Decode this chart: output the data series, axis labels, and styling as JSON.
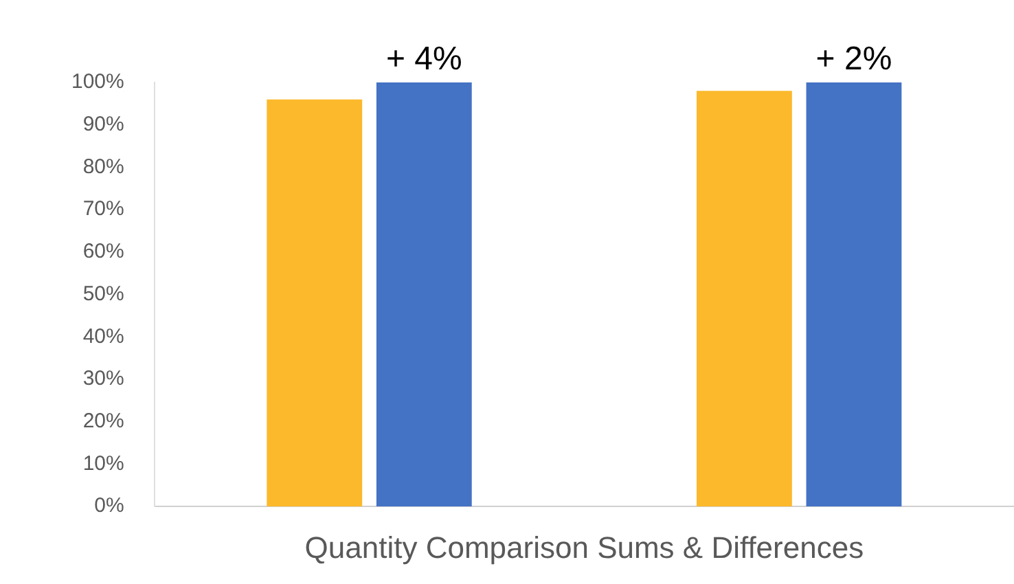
{
  "chart_data": {
    "type": "bar",
    "xlabel": "Quantity Comparison Sums & Differences",
    "categories": [
      null,
      null
    ],
    "series": [
      {
        "color": "#fbb92b",
        "values": [
          96,
          98
        ]
      },
      {
        "color": "#4472c4",
        "values": [
          100,
          100
        ]
      }
    ],
    "ylim": [
      0,
      100
    ],
    "yticks": [
      {
        "value": 0,
        "label": "0%"
      },
      {
        "value": 10,
        "label": "10%"
      },
      {
        "value": 20,
        "label": "20%"
      },
      {
        "value": 30,
        "label": "30%"
      },
      {
        "value": 40,
        "label": "40%"
      },
      {
        "value": 50,
        "label": "50%"
      },
      {
        "value": 60,
        "label": "60%"
      },
      {
        "value": 70,
        "label": "70%"
      },
      {
        "value": 80,
        "label": "80%"
      },
      {
        "value": 90,
        "label": "90%"
      },
      {
        "value": 100,
        "label": "100%"
      }
    ],
    "annotations": [
      "+ 4%",
      "+ 2%"
    ],
    "grid": false,
    "legend": false
  }
}
